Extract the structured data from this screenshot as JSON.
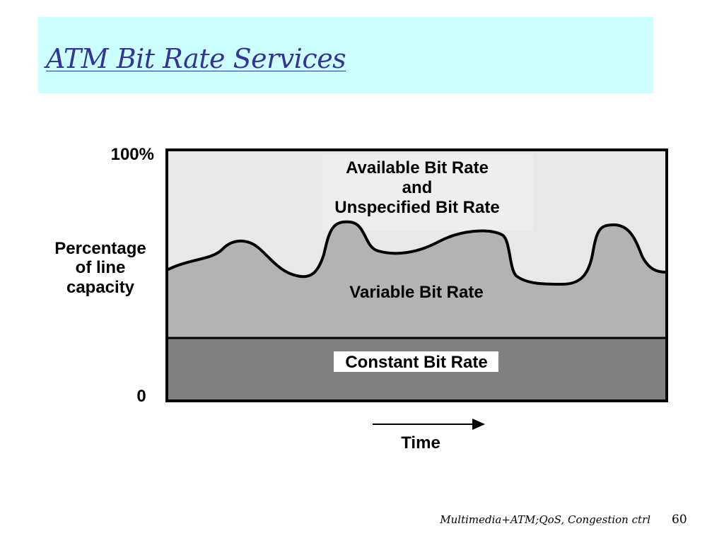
{
  "slide": {
    "title": "ATM Bit Rate Services",
    "title_color": "#333399",
    "title_band_color": "#ccffff"
  },
  "diagram": {
    "y_axis": {
      "top_label": "100%",
      "bottom_label": "0",
      "title_lines": [
        "Percentage",
        "of line",
        "capacity"
      ]
    },
    "regions": {
      "available": {
        "lines": [
          "Available Bit Rate",
          "and",
          "Unspecified Bit Rate"
        ],
        "color": "#e8e8e8"
      },
      "variable": {
        "label": "Variable Bit Rate",
        "color": "#b3b3b3"
      },
      "constant": {
        "label": "Constant Bit Rate",
        "color": "#808080"
      }
    },
    "x_axis": {
      "label": "Time",
      "arrow_icon": "right-arrow-icon"
    }
  },
  "footer": {
    "text": "Multimedia+ATM;QoS, Congestion ctrl",
    "page_number": "60"
  }
}
